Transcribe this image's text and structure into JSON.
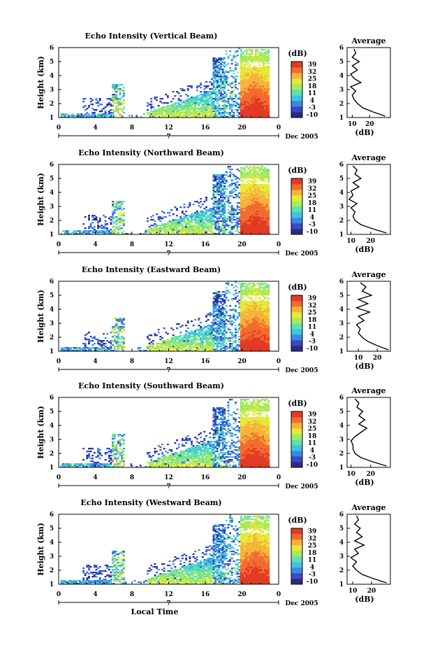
{
  "colors": {
    "colormap": [
      "#2b2b7f",
      "#3a49c8",
      "#3d86e6",
      "#3ec3e6",
      "#5fe0b0",
      "#a9e95c",
      "#e7e838",
      "#f6b33a",
      "#f26c2e",
      "#e23a25"
    ]
  },
  "figure": {
    "x_axis_label": "Local Time",
    "date_label": "Dec 2005",
    "day_label": "7",
    "colorbar_unit": "(dB)",
    "colorbar_ticks": [
      "39",
      "32",
      "25",
      "18",
      "11",
      "4",
      "-3",
      "-10"
    ],
    "average_title": "Average",
    "average_unit": "(dB)"
  },
  "chart_data": [
    {
      "type": "heatmap",
      "title": "Echo Intensity (Vertical Beam)",
      "xlabel": "",
      "ylabel": "Height (km)",
      "x_ticks": [
        "0",
        "4",
        "8",
        "12",
        "16",
        "20",
        "0"
      ],
      "y_ticks": [
        "1",
        "2",
        "3",
        "4",
        "5",
        "6"
      ],
      "xlim": [
        0,
        24
      ],
      "ylim": [
        1,
        6
      ],
      "color_scale_db": [
        -10,
        39
      ],
      "average_profile": {
        "x_ticks": [
          "10",
          "20"
        ],
        "xlim": [
          7,
          32
        ],
        "height_km": [
          1.1,
          1.4,
          1.7,
          2.0,
          2.3,
          2.6,
          2.9,
          3.2,
          3.5,
          3.8,
          4.1,
          4.4,
          4.7,
          5.0,
          5.3,
          5.6,
          5.9
        ],
        "db": [
          29,
          22,
          16,
          13,
          11,
          10,
          12,
          9,
          15,
          11,
          9,
          13,
          10,
          14,
          10,
          12,
          11
        ]
      }
    },
    {
      "type": "heatmap",
      "title": "Echo Intensity (Northward Beam)",
      "xlabel": "",
      "ylabel": "Height (km)",
      "x_ticks": [
        "0",
        "4",
        "8",
        "12",
        "16",
        "20",
        "0"
      ],
      "y_ticks": [
        "1",
        "2",
        "3",
        "4",
        "5",
        "6"
      ],
      "xlim": [
        0,
        24
      ],
      "ylim": [
        1,
        6
      ],
      "color_scale_db": [
        -10,
        39
      ],
      "average_profile": {
        "x_ticks": [
          "10",
          "20"
        ],
        "xlim": [
          8,
          30
        ],
        "height_km": [
          1.1,
          1.4,
          1.7,
          2.0,
          2.3,
          2.6,
          2.9,
          3.2,
          3.5,
          3.8,
          4.1,
          4.4,
          4.7,
          5.0,
          5.3,
          5.6,
          5.9
        ],
        "db": [
          28,
          21,
          15,
          12,
          11,
          12,
          10,
          13,
          9,
          11,
          10,
          14,
          11,
          15,
          12,
          13,
          11
        ]
      }
    },
    {
      "type": "heatmap",
      "title": "Echo Intensity (Eastward Beam)",
      "xlabel": "",
      "ylabel": "Height (km)",
      "x_ticks": [
        "0",
        "4",
        "8",
        "12",
        "16",
        "20",
        "0"
      ],
      "y_ticks": [
        "1",
        "2",
        "3",
        "4",
        "5",
        "6"
      ],
      "xlim": [
        0,
        24
      ],
      "ylim": [
        1,
        6
      ],
      "color_scale_db": [
        -10,
        39
      ],
      "average_profile": {
        "x_ticks": [
          "10",
          "20"
        ],
        "xlim": [
          4,
          27
        ],
        "height_km": [
          1.1,
          1.4,
          1.7,
          2.0,
          2.3,
          2.6,
          2.9,
          3.2,
          3.5,
          3.8,
          4.1,
          4.4,
          4.7,
          5.0,
          5.3,
          5.6,
          5.9
        ],
        "db": [
          26,
          20,
          15,
          12,
          10,
          11,
          9,
          13,
          10,
          16,
          9,
          15,
          10,
          17,
          12,
          14,
          11
        ]
      }
    },
    {
      "type": "heatmap",
      "title": "Echo Intensity (Southward Beam)",
      "xlabel": "",
      "ylabel": "Height (km)",
      "x_ticks": [
        "0",
        "4",
        "8",
        "12",
        "16",
        "20",
        "0"
      ],
      "y_ticks": [
        "1",
        "2",
        "3",
        "4",
        "5",
        "6"
      ],
      "xlim": [
        0,
        24
      ],
      "ylim": [
        1,
        6
      ],
      "color_scale_db": [
        -10,
        39
      ],
      "average_profile": {
        "x_ticks": [
          "10",
          "20"
        ],
        "xlim": [
          8,
          30
        ],
        "height_km": [
          1.1,
          1.4,
          1.7,
          2.0,
          2.3,
          2.6,
          2.9,
          3.2,
          3.5,
          3.8,
          4.1,
          4.4,
          4.7,
          5.0,
          5.3,
          5.6,
          5.9
        ],
        "db": [
          28,
          21,
          15,
          12,
          11,
          11,
          10,
          12,
          15,
          18,
          14,
          17,
          14,
          16,
          13,
          14,
          12
        ]
      }
    },
    {
      "type": "heatmap",
      "title": "Echo Intensity (Westward Beam)",
      "xlabel": "Local Time",
      "ylabel": "Height (km)",
      "x_ticks": [
        "0",
        "4",
        "8",
        "12",
        "16",
        "20",
        "0"
      ],
      "y_ticks": [
        "1",
        "2",
        "3",
        "4",
        "5",
        "6"
      ],
      "xlim": [
        0,
        24
      ],
      "ylim": [
        1,
        6
      ],
      "color_scale_db": [
        -10,
        39
      ],
      "average_profile": {
        "x_ticks": [
          "10",
          "20"
        ],
        "xlim": [
          7,
          30
        ],
        "height_km": [
          1.1,
          1.4,
          1.7,
          2.0,
          2.3,
          2.6,
          2.9,
          3.2,
          3.5,
          3.8,
          4.1,
          4.4,
          4.7,
          5.0,
          5.3,
          5.6,
          5.9
        ],
        "db": [
          28,
          21,
          15,
          12,
          10,
          12,
          9,
          13,
          11,
          16,
          11,
          15,
          12,
          14,
          11,
          13,
          12
        ]
      }
    }
  ]
}
